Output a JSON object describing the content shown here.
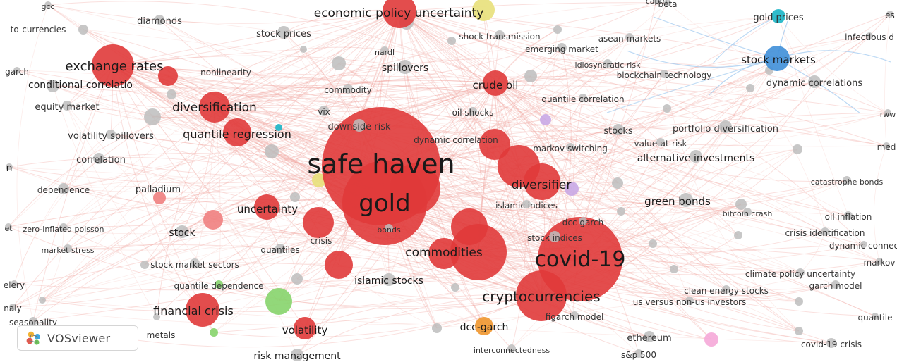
{
  "app": {
    "name": "VOSviewer",
    "logo_icon": "vosviewer-logo-icon"
  },
  "colors": {
    "red_cluster": "#e03a3a",
    "red_light": "#f08080",
    "grey": "#bdbdbd",
    "blue": "#3f8fd8",
    "teal": "#1ab5c6",
    "yellow": "#e8e07a",
    "orange": "#f0962e",
    "green": "#86d46b",
    "purple": "#c9a9e6",
    "pink": "#f5a9d8",
    "link_red": "#f2a7a0",
    "link_blue": "#9cc8ef"
  },
  "nodes": [
    {
      "label": "safe haven",
      "cluster": "red",
      "weight": 10
    },
    {
      "label": "gold",
      "cluster": "red",
      "weight": 8
    },
    {
      "label": "covid-19",
      "cluster": "red",
      "weight": 7
    },
    {
      "label": "cryptocurrencies",
      "cluster": "red",
      "weight": 4
    },
    {
      "label": "commodities",
      "cluster": "red",
      "weight": 3
    },
    {
      "label": "diversifier",
      "cluster": "red",
      "weight": 3
    },
    {
      "label": "exchange rates",
      "cluster": "red",
      "weight": 3
    },
    {
      "label": "economic policy uncertainty",
      "cluster": "red",
      "weight": 3
    },
    {
      "label": "diversification",
      "cluster": "red",
      "weight": 3
    },
    {
      "label": "quantile regression",
      "cluster": "red",
      "weight": 2
    },
    {
      "label": "uncertainty",
      "cluster": "red",
      "weight": 2
    },
    {
      "label": "financial crisis",
      "cluster": "red",
      "weight": 2
    },
    {
      "label": "volatility",
      "cluster": "red",
      "weight": 2
    },
    {
      "label": "crude oil",
      "cluster": "red",
      "weight": 2
    },
    {
      "label": "stock markets",
      "cluster": "blue",
      "weight": 2
    },
    {
      "label": "gold prices",
      "cluster": "teal",
      "weight": 1
    },
    {
      "label": "dcc-garch",
      "cluster": "orange",
      "weight": 1
    },
    {
      "label": "green bonds",
      "cluster": "grey",
      "weight": 1
    },
    {
      "label": "portfolio diversification",
      "cluster": "grey",
      "weight": 1
    },
    {
      "label": "alternative investments",
      "cluster": "grey",
      "weight": 1
    },
    {
      "label": "dynamic correlations",
      "cluster": "grey",
      "weight": 1
    },
    {
      "label": "spillovers",
      "cluster": "grey",
      "weight": 1
    },
    {
      "label": "stock prices",
      "cluster": "grey",
      "weight": 1
    },
    {
      "label": "islamic stocks",
      "cluster": "grey",
      "weight": 1
    },
    {
      "label": "risk management",
      "cluster": "grey",
      "weight": 1
    },
    {
      "label": "downside risk",
      "cluster": "grey",
      "weight": 1
    },
    {
      "label": "conditional correlatio",
      "cluster": "grey",
      "weight": 1
    },
    {
      "label": "stocks",
      "cluster": "grey",
      "weight": 1
    },
    {
      "label": "stock indices",
      "cluster": "grey",
      "weight": 1
    },
    {
      "label": "covid-19 crisis",
      "cluster": "grey",
      "weight": 1
    },
    {
      "label": "ethereum",
      "cluster": "grey",
      "weight": 1
    },
    {
      "label": "dependence",
      "cluster": "grey",
      "weight": 1
    },
    {
      "label": "palladium",
      "cluster": "grey",
      "weight": 1
    },
    {
      "label": "correlation",
      "cluster": "grey",
      "weight": 1
    },
    {
      "label": "stock",
      "cluster": "grey",
      "weight": 1
    },
    {
      "label": "crisis",
      "cluster": "red",
      "weight": 1
    },
    {
      "label": "bonds",
      "cluster": "red",
      "weight": 1
    },
    {
      "label": "quantiles",
      "cluster": "grey",
      "weight": 1
    },
    {
      "label": "stock market sectors",
      "cluster": "grey",
      "weight": 1
    },
    {
      "label": "quantile dependence",
      "cluster": "green",
      "weight": 1
    },
    {
      "label": "metals",
      "cluster": "green",
      "weight": 1
    },
    {
      "label": "seasonality",
      "cluster": "grey",
      "weight": 1
    },
    {
      "label": "market stress",
      "cluster": "grey",
      "weight": 1
    },
    {
      "label": "zero-inflated poisson",
      "cluster": "grey",
      "weight": 1
    },
    {
      "label": "volatility spillovers",
      "cluster": "grey",
      "weight": 1
    },
    {
      "label": "equity market",
      "cluster": "grey",
      "weight": 1
    },
    {
      "label": "nonlinearity",
      "cluster": "red",
      "weight": 1
    },
    {
      "label": "diamonds",
      "cluster": "grey",
      "weight": 1
    },
    {
      "label": "vix",
      "cluster": "grey",
      "weight": 1
    },
    {
      "label": "commodity",
      "cluster": "grey",
      "weight": 1
    },
    {
      "label": "nardl",
      "cluster": "grey",
      "weight": 1
    },
    {
      "label": "shock transmission",
      "cluster": "grey",
      "weight": 1
    },
    {
      "label": "emerging market",
      "cluster": "grey",
      "weight": 1
    },
    {
      "label": "asean markets",
      "cluster": "grey",
      "weight": 1
    },
    {
      "label": "idiosyncratic risk",
      "cluster": "grey",
      "weight": 1
    },
    {
      "label": "blockchain technology",
      "cluster": "grey",
      "weight": 1
    },
    {
      "label": "quantile correlation",
      "cluster": "grey",
      "weight": 1
    },
    {
      "label": "oil shocks",
      "cluster": "grey",
      "weight": 1
    },
    {
      "label": "dynamic correlation",
      "cluster": "red",
      "weight": 1
    },
    {
      "label": "markov switching",
      "cluster": "grey",
      "weight": 1
    },
    {
      "label": "value-at-risk",
      "cluster": "grey",
      "weight": 1
    },
    {
      "label": "islamic indices",
      "cluster": "grey",
      "weight": 1
    },
    {
      "label": "dcc garch",
      "cluster": "grey",
      "weight": 1
    },
    {
      "label": "bitcoin crash",
      "cluster": "grey",
      "weight": 1
    },
    {
      "label": "oil inflation",
      "cluster": "grey",
      "weight": 1
    },
    {
      "label": "crisis identification",
      "cluster": "grey",
      "weight": 1
    },
    {
      "label": "catastrophe bonds",
      "cluster": "grey",
      "weight": 1
    },
    {
      "label": "climate policy uncertainty",
      "cluster": "grey",
      "weight": 1
    },
    {
      "label": "garch model",
      "cluster": "grey",
      "weight": 1
    },
    {
      "label": "clean energy stocks",
      "cluster": "grey",
      "weight": 1
    },
    {
      "label": "us versus non-us investors",
      "cluster": "grey",
      "weight": 1
    },
    {
      "label": "figarch model",
      "cluster": "grey",
      "weight": 1
    },
    {
      "label": "interconnectedness",
      "cluster": "grey",
      "weight": 1
    },
    {
      "label": "s&p 500",
      "cluster": "grey",
      "weight": 1
    },
    {
      "label": "beta",
      "cluster": "grey",
      "weight": 1
    },
    {
      "label": "gcc",
      "cluster": "grey",
      "weight": 1
    },
    {
      "label": "to-currencies",
      "cluster": "grey",
      "weight": 1
    },
    {
      "label": "garch",
      "cluster": "grey",
      "weight": 1
    },
    {
      "label": "infectious d",
      "cluster": "grey",
      "weight": 1
    },
    {
      "label": "dynamic connec",
      "cluster": "grey",
      "weight": 1
    },
    {
      "label": "markov",
      "cluster": "grey",
      "weight": 1
    },
    {
      "label": "quantile",
      "cluster": "grey",
      "weight": 1
    },
    {
      "label": "med",
      "cluster": "grey",
      "weight": 1
    },
    {
      "label": "rww",
      "cluster": "grey",
      "weight": 1
    },
    {
      "label": "elery",
      "cluster": "grey",
      "weight": 1
    },
    {
      "label": "naly",
      "cluster": "grey",
      "weight": 1
    },
    {
      "label": "n",
      "cluster": "grey",
      "weight": 1
    },
    {
      "label": "et",
      "cluster": "grey",
      "weight": 1
    },
    {
      "label": "es",
      "cluster": "grey",
      "weight": 1
    },
    {
      "label": "capm",
      "cluster": "grey",
      "weight": 1
    }
  ]
}
